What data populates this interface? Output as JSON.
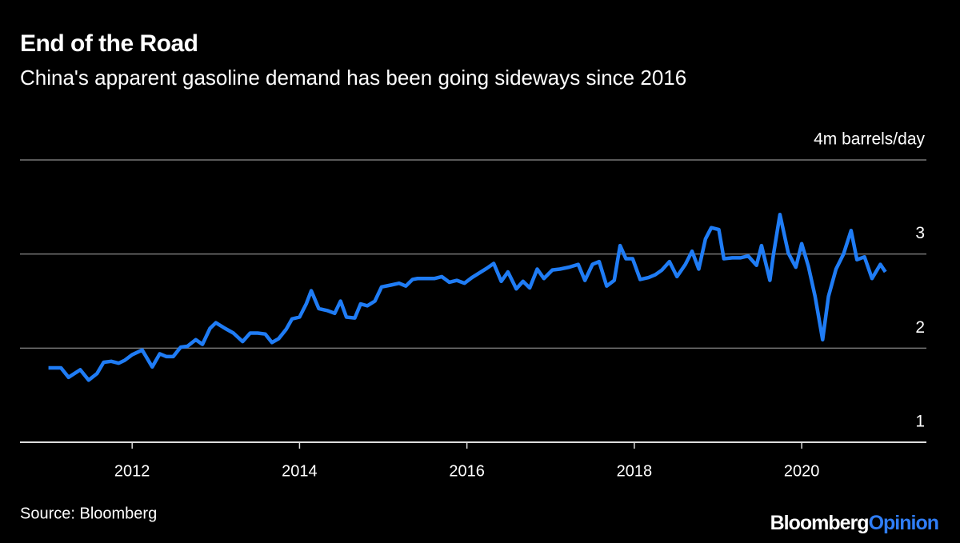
{
  "chart_data": {
    "type": "line",
    "title": "End of the Road",
    "subtitle": "China's apparent gasoline demand has been going sideways since 2016",
    "source": "Source: Bloomberg",
    "brand": [
      "Bloomberg",
      "Opinion"
    ],
    "xlim": [
      2010.66,
      2021.49
    ],
    "xticks": [
      2012,
      2014,
      2016,
      2018,
      2020
    ],
    "ylim": [
      1,
      4
    ],
    "yticks": [
      1,
      2,
      3,
      {
        "value": 4,
        "label": "4m barrels/day"
      }
    ],
    "grid": true,
    "x": [
      2011.0,
      2011.15,
      2011.24,
      2011.38,
      2011.48,
      2011.58,
      2011.66,
      2011.75,
      2011.84,
      2011.91,
      2012.0,
      2012.12,
      2012.24,
      2012.33,
      2012.41,
      2012.49,
      2012.58,
      2012.66,
      2012.76,
      2012.84,
      2012.93,
      2013.0,
      2013.11,
      2013.21,
      2013.32,
      2013.41,
      2013.5,
      2013.59,
      2013.67,
      2013.75,
      2013.84,
      2013.91,
      2014.0,
      2014.08,
      2014.14,
      2014.23,
      2014.33,
      2014.42,
      2014.49,
      2014.56,
      2014.66,
      2014.73,
      2014.81,
      2014.9,
      2014.98,
      2015.09,
      2015.19,
      2015.27,
      2015.35,
      2015.41,
      2015.61,
      2015.7,
      2015.79,
      2015.88,
      2015.97,
      2016.06,
      2016.15,
      2016.24,
      2016.32,
      2016.41,
      2016.49,
      2016.59,
      2016.67,
      2016.75,
      2016.84,
      2016.92,
      2017.02,
      2017.11,
      2017.22,
      2017.33,
      2017.41,
      2017.5,
      2017.58,
      2017.67,
      2017.76,
      2017.83,
      2017.9,
      2017.98,
      2018.07,
      2018.17,
      2018.25,
      2018.33,
      2018.42,
      2018.51,
      2018.61,
      2018.69,
      2018.77,
      2018.85,
      2018.92,
      2019.01,
      2019.07,
      2019.17,
      2019.27,
      2019.36,
      2019.46,
      2019.52,
      2019.62,
      2019.66,
      2019.74,
      2019.84,
      2019.93,
      2020.0,
      2020.08,
      2020.16,
      2020.25,
      2020.32,
      2020.41,
      2020.5,
      2020.59,
      2020.66,
      2020.75,
      2020.84,
      2020.94,
      2021.0
    ],
    "series": [
      {
        "color": "#1f7cf5",
        "values": [
          1.79,
          1.79,
          1.69,
          1.77,
          1.66,
          1.73,
          1.85,
          1.86,
          1.84,
          1.87,
          1.93,
          1.98,
          1.8,
          1.94,
          1.91,
          1.91,
          2.01,
          2.02,
          2.09,
          2.04,
          2.21,
          2.27,
          2.21,
          2.16,
          2.07,
          2.16,
          2.16,
          2.15,
          2.06,
          2.1,
          2.2,
          2.31,
          2.33,
          2.47,
          2.61,
          2.42,
          2.4,
          2.37,
          2.5,
          2.33,
          2.32,
          2.47,
          2.45,
          2.5,
          2.65,
          2.67,
          2.69,
          2.66,
          2.73,
          2.74,
          2.74,
          2.76,
          2.7,
          2.72,
          2.69,
          2.75,
          2.8,
          2.85,
          2.9,
          2.71,
          2.81,
          2.63,
          2.71,
          2.64,
          2.84,
          2.74,
          2.83,
          2.84,
          2.86,
          2.89,
          2.72,
          2.89,
          2.92,
          2.66,
          2.72,
          3.09,
          2.95,
          2.95,
          2.73,
          2.75,
          2.78,
          2.83,
          2.92,
          2.76,
          2.89,
          3.03,
          2.84,
          3.16,
          3.28,
          3.26,
          2.95,
          2.96,
          2.96,
          2.98,
          2.88,
          3.09,
          2.72,
          2.98,
          3.42,
          3.01,
          2.86,
          3.11,
          2.87,
          2.55,
          2.09,
          2.55,
          2.84,
          3.0,
          3.25,
          2.94,
          2.97,
          2.74,
          2.89,
          2.81
        ]
      }
    ]
  }
}
